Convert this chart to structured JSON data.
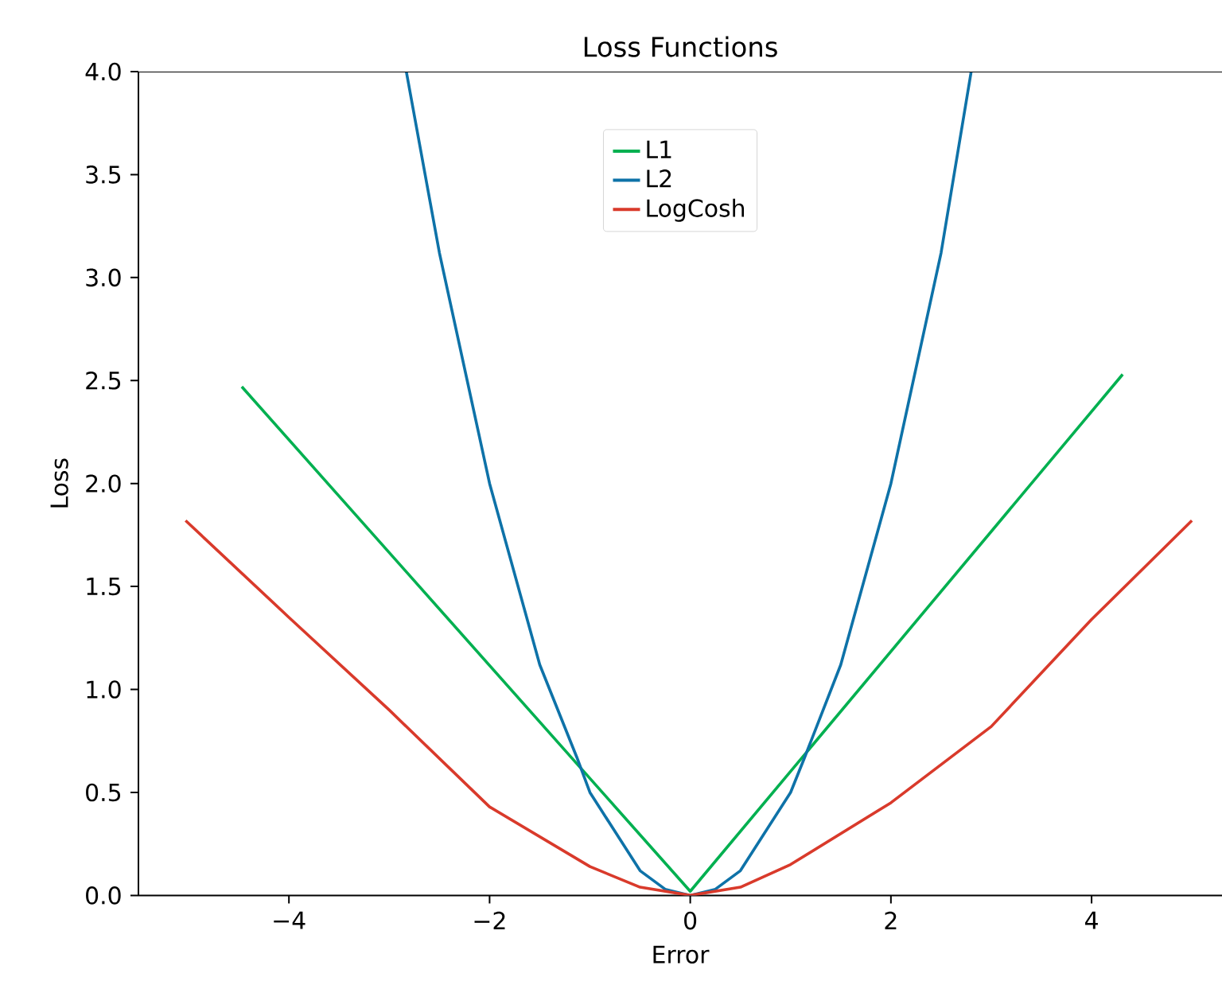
{
  "chart_data": {
    "type": "line",
    "title": "Loss Functions",
    "xlabel": "Error",
    "ylabel": "Loss",
    "xlim": [
      -5.5,
      5.3
    ],
    "ylim": [
      0,
      4
    ],
    "xticks": [
      {
        "value": -4,
        "label": "−4"
      },
      {
        "value": -2,
        "label": "−2"
      },
      0,
      2,
      4
    ],
    "yticks": [
      {
        "value": 0,
        "label": "0.0"
      },
      {
        "value": 0.5,
        "label": "0.5"
      },
      {
        "value": 1,
        "label": "1.0"
      },
      {
        "value": 1.5,
        "label": "1.5"
      },
      {
        "value": 2,
        "label": "2.0"
      },
      {
        "value": 2.5,
        "label": "2.5"
      },
      {
        "value": 3,
        "label": "3.0"
      },
      {
        "value": 3.5,
        "label": "3.5"
      },
      {
        "value": 4,
        "label": "4.0"
      }
    ],
    "grid": false,
    "legend": "top",
    "marker": "none",
    "line_style": "solid",
    "series": [
      {
        "name": "L1",
        "color": "#00b050",
        "x": [
          -4.47,
          0,
          4.31
        ],
        "values": [
          2.47,
          0.02,
          2.53
        ]
      },
      {
        "name": "L2",
        "color": "#0e72a8",
        "x": [
          -2.83,
          -2.5,
          -2,
          -1.5,
          -1.13,
          -1,
          -0.5,
          -0.25,
          0,
          0.25,
          0.5,
          1,
          1.14,
          1.5,
          2,
          2.5,
          2.8
        ],
        "values": [
          4.0,
          3.12,
          2.0,
          1.12,
          0.67,
          0.5,
          0.12,
          0.03,
          0,
          0.03,
          0.12,
          0.5,
          0.67,
          1.12,
          2.0,
          3.12,
          4.0
        ]
      },
      {
        "name": "LogCosh",
        "color": "#d93a2b",
        "x": [
          -5.03,
          -4,
          -3,
          -2,
          -1,
          -0.5,
          0,
          0.5,
          1,
          2,
          3,
          4,
          5.0
        ],
        "values": [
          1.82,
          1.35,
          0.9,
          0.43,
          0.14,
          0.04,
          0,
          0.04,
          0.15,
          0.45,
          0.82,
          1.34,
          1.82
        ]
      }
    ]
  }
}
